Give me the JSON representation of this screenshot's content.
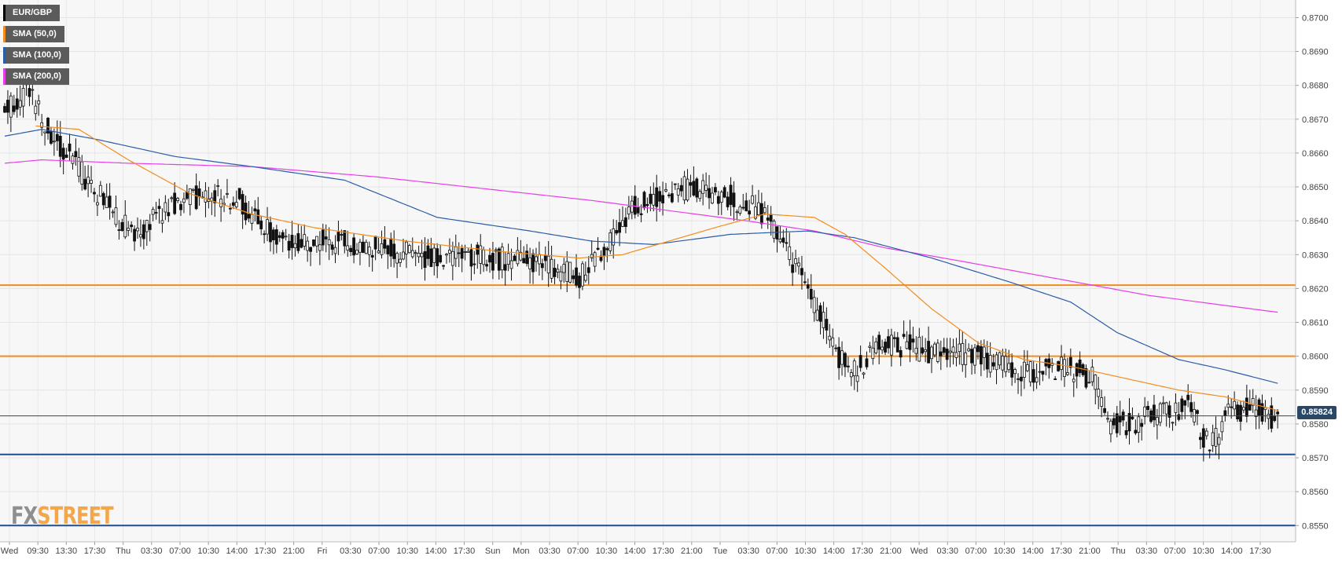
{
  "chart_data": {
    "type": "candlestick",
    "symbol": "EUR/GBP",
    "legend": [
      {
        "label": "EUR/GBP",
        "color": "#000000"
      },
      {
        "label": "SMA (50,0)",
        "color": "#f28c1e"
      },
      {
        "label": "SMA (100,0)",
        "color": "#2b5ca8"
      },
      {
        "label": "SMA (200,0)",
        "color": "#e83ee8"
      }
    ],
    "ylim": [
      0.85452,
      0.87052
    ],
    "y_ticks": [
      "0.8700",
      "0.8690",
      "0.8680",
      "0.8670",
      "0.8660",
      "0.8650",
      "0.8640",
      "0.8630",
      "0.8620",
      "0.8610",
      "0.8600",
      "0.8590",
      "0.8580",
      "0.8570",
      "0.8560",
      "0.8550"
    ],
    "x_ticks": [
      "Wed",
      "09:30",
      "13:30",
      "17:30",
      "Thu",
      "03:30",
      "07:00",
      "10:30",
      "14:00",
      "17:30",
      "21:00",
      "Fri",
      "03:30",
      "07:00",
      "10:30",
      "14:00",
      "17:30",
      "Sun",
      "Mon",
      "03:30",
      "07:00",
      "10:30",
      "14:00",
      "17:30",
      "21:00",
      "Tue",
      "03:30",
      "07:00",
      "10:30",
      "14:00",
      "17:30",
      "21:00",
      "Wed",
      "03:30",
      "07:00",
      "10:30",
      "14:00",
      "17:30",
      "21:00",
      "Thu",
      "03:30",
      "07:00",
      "10:30",
      "14:00",
      "17:30"
    ],
    "current_price": "0.85824",
    "current_price_value": 0.85824,
    "horizontal_levels": [
      {
        "value": 0.8621,
        "color": "#f28c1e"
      },
      {
        "value": 0.86,
        "color": "#f28c1e"
      },
      {
        "value": 0.8571,
        "color": "#1f4e91"
      },
      {
        "value": 0.855,
        "color": "#1f4e91"
      }
    ],
    "price_anchors": [
      [
        0,
        0.8672
      ],
      [
        8,
        0.8679
      ],
      [
        14,
        0.8667
      ],
      [
        22,
        0.8658
      ],
      [
        30,
        0.8648
      ],
      [
        42,
        0.8635
      ],
      [
        52,
        0.8643
      ],
      [
        60,
        0.8647
      ],
      [
        68,
        0.8648
      ],
      [
        76,
        0.8646
      ],
      [
        84,
        0.8638
      ],
      [
        92,
        0.8632
      ],
      [
        104,
        0.8634
      ],
      [
        116,
        0.8633
      ],
      [
        128,
        0.8631
      ],
      [
        140,
        0.8629
      ],
      [
        152,
        0.863
      ],
      [
        164,
        0.8628
      ],
      [
        176,
        0.8627
      ],
      [
        186,
        0.8623
      ],
      [
        194,
        0.8632
      ],
      [
        202,
        0.8643
      ],
      [
        212,
        0.8647
      ],
      [
        222,
        0.865
      ],
      [
        232,
        0.8648
      ],
      [
        242,
        0.8644
      ],
      [
        248,
        0.864
      ],
      [
        254,
        0.863
      ],
      [
        262,
        0.8616
      ],
      [
        270,
        0.86
      ],
      [
        276,
        0.8596
      ],
      [
        284,
        0.8604
      ],
      [
        292,
        0.8603
      ],
      [
        302,
        0.8601
      ],
      [
        312,
        0.8601
      ],
      [
        320,
        0.8598
      ],
      [
        330,
        0.8595
      ],
      [
        342,
        0.8597
      ],
      [
        352,
        0.8594
      ],
      [
        356,
        0.8581
      ],
      [
        364,
        0.858
      ],
      [
        374,
        0.8583
      ],
      [
        384,
        0.8585
      ],
      [
        390,
        0.8572
      ],
      [
        396,
        0.8583
      ],
      [
        402,
        0.8585
      ],
      [
        408,
        0.8583
      ],
      [
        412,
        0.8581
      ]
    ],
    "sma50_anchors": [
      [
        10,
        0.8668
      ],
      [
        24,
        0.8667
      ],
      [
        40,
        0.8658
      ],
      [
        60,
        0.8648
      ],
      [
        80,
        0.8642
      ],
      [
        100,
        0.8638
      ],
      [
        130,
        0.8634
      ],
      [
        160,
        0.8631
      ],
      [
        186,
        0.8629
      ],
      [
        200,
        0.863
      ],
      [
        215,
        0.8634
      ],
      [
        230,
        0.8638
      ],
      [
        246,
        0.8642
      ],
      [
        262,
        0.8641
      ],
      [
        272,
        0.8636
      ],
      [
        285,
        0.8626
      ],
      [
        300,
        0.8614
      ],
      [
        315,
        0.8604
      ],
      [
        330,
        0.8599
      ],
      [
        345,
        0.8597
      ],
      [
        360,
        0.8594
      ],
      [
        380,
        0.859
      ],
      [
        395,
        0.8588
      ],
      [
        412,
        0.8584
      ]
    ],
    "sma100_anchors": [
      [
        0,
        0.8665
      ],
      [
        12,
        0.8667
      ],
      [
        30,
        0.8664
      ],
      [
        55,
        0.8659
      ],
      [
        80,
        0.8656
      ],
      [
        110,
        0.8652
      ],
      [
        140,
        0.8641
      ],
      [
        170,
        0.8637
      ],
      [
        190,
        0.8634
      ],
      [
        210,
        0.8633
      ],
      [
        235,
        0.8636
      ],
      [
        260,
        0.8637
      ],
      [
        275,
        0.8635
      ],
      [
        300,
        0.8629
      ],
      [
        325,
        0.8622
      ],
      [
        345,
        0.8616
      ],
      [
        360,
        0.8607
      ],
      [
        380,
        0.8599
      ],
      [
        395,
        0.8596
      ],
      [
        412,
        0.8592
      ]
    ],
    "sma200_anchors": [
      [
        0,
        0.8657
      ],
      [
        12,
        0.8658
      ],
      [
        40,
        0.8657
      ],
      [
        80,
        0.8656
      ],
      [
        120,
        0.8653
      ],
      [
        160,
        0.8649
      ],
      [
        190,
        0.8646
      ],
      [
        215,
        0.8643
      ],
      [
        240,
        0.864
      ],
      [
        262,
        0.8637
      ],
      [
        285,
        0.8632
      ],
      [
        310,
        0.8628
      ],
      [
        340,
        0.8623
      ],
      [
        370,
        0.8618
      ],
      [
        395,
        0.8615
      ],
      [
        412,
        0.8613
      ]
    ]
  },
  "logo": {
    "part1": "FX",
    "part2": "STREET"
  }
}
